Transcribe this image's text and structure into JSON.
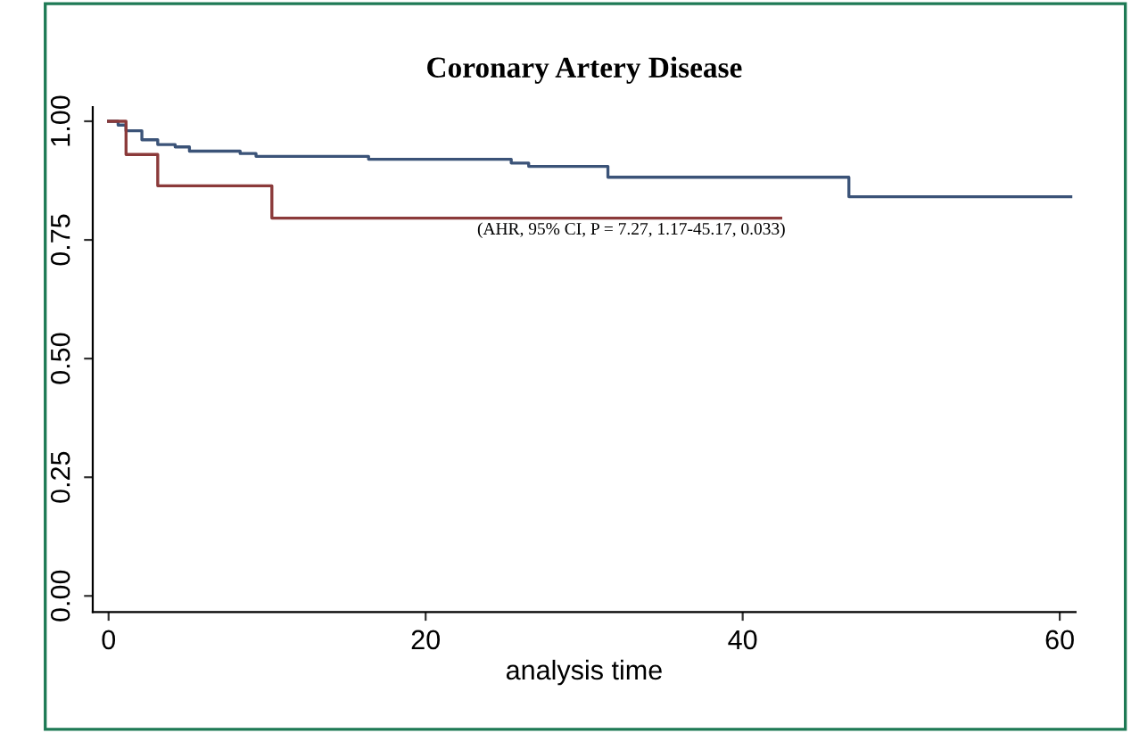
{
  "chart_data": {
    "type": "step",
    "title": "Coronary Artery Disease",
    "xlabel": "analysis time",
    "xlim": [
      -1,
      61
    ],
    "xticks": [
      0,
      20,
      40,
      60
    ],
    "ylim": [
      -0.034,
      1.03
    ],
    "yticks": [
      {
        "value": 0,
        "label": "0.00"
      },
      {
        "value": 0.25,
        "label": "0.25"
      },
      {
        "value": 0.5,
        "label": "0.50"
      },
      {
        "value": 0.75,
        "label": "0.75"
      },
      {
        "value": 1,
        "label": "1.00"
      }
    ],
    "grid": false,
    "marker": "none",
    "line_style": "solid",
    "annotations": [
      "(AHR, 95% CI, P = 7.27, 1.17-45.17, 0.033)"
    ],
    "series": [
      {
        "color": "#3b5378",
        "x": [
          0,
          0.6,
          1.1,
          2.1,
          3.1,
          4.2,
          5.1,
          8.3,
          9.3,
          16.4,
          25.4,
          26.5,
          31.5,
          46.7,
          60.7
        ],
        "values": [
          1.0,
          0.992,
          0.98,
          0.961,
          0.951,
          0.946,
          0.937,
          0.932,
          0.926,
          0.92,
          0.912,
          0.905,
          0.882,
          0.841,
          0.841
        ]
      },
      {
        "color": "#8b3a3a",
        "x": [
          0,
          1.1,
          3.1,
          10.3,
          42.4
        ],
        "values": [
          1.0,
          0.93,
          0.864,
          0.796,
          0.796
        ]
      }
    ]
  }
}
